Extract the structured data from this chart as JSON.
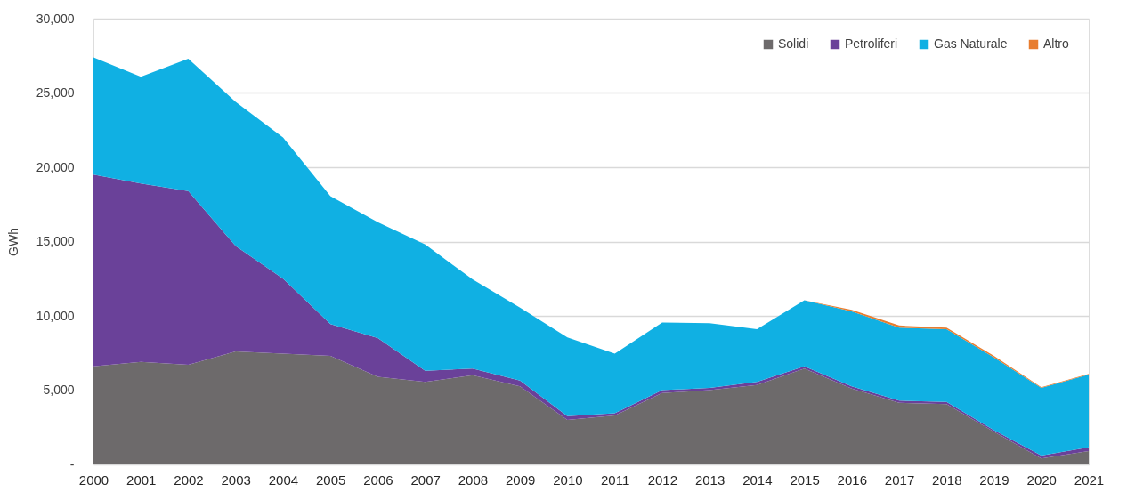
{
  "chart_data": {
    "type": "area",
    "stacked": true,
    "ylabel": "GWh",
    "categories": [
      "2000",
      "2001",
      "2002",
      "2003",
      "2004",
      "2005",
      "2006",
      "2007",
      "2008",
      "2009",
      "2010",
      "2011",
      "2012",
      "2013",
      "2014",
      "2015",
      "2016",
      "2017",
      "2018",
      "2019",
      "2020",
      "2021"
    ],
    "series": [
      {
        "name": "Solidi",
        "color": "#6d6a6b",
        "values": [
          6600,
          6900,
          6700,
          7600,
          7450,
          7300,
          5900,
          5550,
          6000,
          5250,
          3000,
          3300,
          4800,
          5000,
          5350,
          6450,
          5100,
          4150,
          4050,
          2200,
          400,
          900
        ]
      },
      {
        "name": "Petroliferi",
        "color": "#6a4199",
        "values": [
          12900,
          12000,
          11700,
          7100,
          5050,
          2150,
          2600,
          750,
          450,
          400,
          250,
          150,
          200,
          150,
          200,
          150,
          150,
          150,
          150,
          100,
          200,
          250
        ]
      },
      {
        "name": "Gas Naturale",
        "color": "#10b0e3",
        "values": [
          7900,
          7200,
          8900,
          9700,
          9500,
          8600,
          7800,
          8500,
          6000,
          4900,
          5300,
          4000,
          4550,
          4350,
          3550,
          4450,
          5050,
          4900,
          4900,
          4900,
          4550,
          4900
        ]
      },
      {
        "name": "Altro",
        "color": "#e87d2f",
        "values": [
          0,
          0,
          0,
          0,
          0,
          0,
          0,
          0,
          0,
          0,
          0,
          0,
          0,
          0,
          0,
          0,
          100,
          150,
          100,
          100,
          50,
          50
        ]
      }
    ],
    "ylim": [
      0,
      30000
    ],
    "yticks": [
      {
        "value": 0,
        "label": "-"
      },
      {
        "value": 5000,
        "label": "5,000"
      },
      {
        "value": 10000,
        "label": "10,000"
      },
      {
        "value": 15000,
        "label": "15,000"
      },
      {
        "value": 20000,
        "label": "20,000"
      },
      {
        "value": 25000,
        "label": "25,000"
      },
      {
        "value": 30000,
        "label": "30,000"
      }
    ],
    "grid": "y",
    "legend": "top right"
  }
}
